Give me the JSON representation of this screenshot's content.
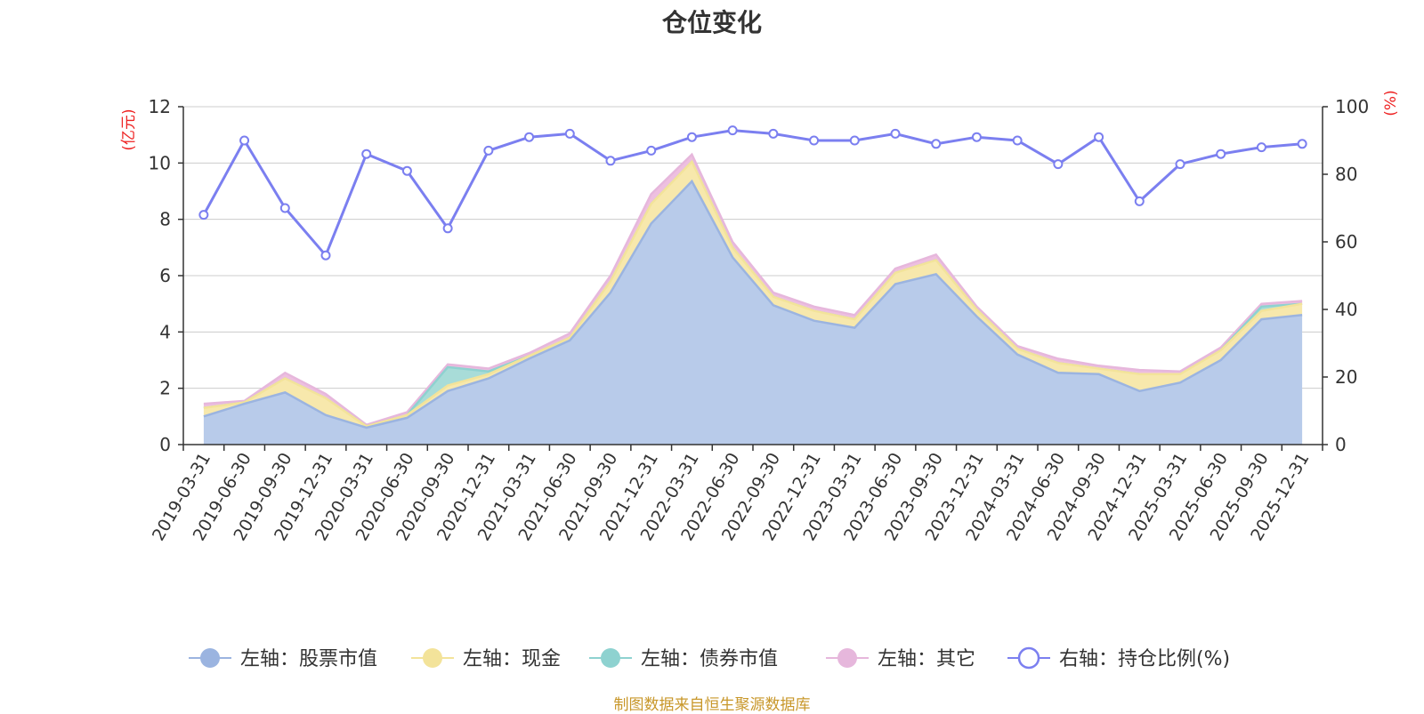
{
  "chart_data": {
    "type": "area",
    "title": "仓位变化",
    "source": "制图数据来自恒生聚源数据库",
    "left_axis_unit": "(亿元)",
    "right_axis_unit": "(%)",
    "left_ylim": [
      0,
      12
    ],
    "left_ticks": [
      "0",
      "2",
      "4",
      "6",
      "8",
      "10",
      "12"
    ],
    "right_ylim": [
      0,
      100
    ],
    "right_ticks": [
      "0",
      "20",
      "40",
      "60",
      "80",
      "100"
    ],
    "categories": [
      "2019-03-31",
      "2019-06-30",
      "2019-09-30",
      "2019-12-31",
      "2020-03-31",
      "2020-06-30",
      "2020-09-30",
      "2020-12-31",
      "2021-03-31",
      "2021-06-30",
      "2021-09-30",
      "2021-12-31",
      "2022-03-31",
      "2022-06-30",
      "2022-09-30",
      "2022-12-31",
      "2023-03-31",
      "2023-06-30",
      "2023-09-30",
      "2023-12-31",
      "2024-03-31",
      "2024-06-30",
      "2024-09-30",
      "2024-12-31",
      "2025-03-31",
      "2025-06-30",
      "2025-09-30",
      "2025-12-31"
    ],
    "stacked_series": [
      {
        "name": "左轴：股票市值",
        "color": "#9bb4e0",
        "fill": "#b8cbea",
        "values": [
          1.0,
          1.45,
          1.85,
          1.05,
          0.6,
          0.95,
          1.9,
          2.35,
          3.05,
          3.7,
          5.4,
          7.85,
          9.35,
          6.65,
          4.95,
          4.4,
          4.15,
          5.7,
          6.05,
          4.55,
          3.2,
          2.55,
          2.5,
          1.9,
          2.2,
          3.0,
          4.45,
          4.6
        ]
      },
      {
        "name": "左轴：现金",
        "color": "#f3e39a",
        "fill": "#f7e8ac",
        "values": [
          0.3,
          0.05,
          0.5,
          0.6,
          0.05,
          0.1,
          0.2,
          0.15,
          0.1,
          0.1,
          0.4,
          0.7,
          0.7,
          0.35,
          0.3,
          0.35,
          0.3,
          0.4,
          0.5,
          0.25,
          0.2,
          0.35,
          0.2,
          0.6,
          0.3,
          0.35,
          0.3,
          0.4
        ]
      },
      {
        "name": "左轴：债券市值",
        "color": "#8ed2d0",
        "fill": "#a8dcd8",
        "values": [
          0.0,
          0.0,
          0.0,
          0.0,
          0.0,
          0.0,
          0.65,
          0.1,
          0.0,
          0.0,
          0.0,
          0.0,
          0.0,
          0.0,
          0.0,
          0.0,
          0.0,
          0.0,
          0.0,
          0.0,
          0.0,
          0.0,
          0.0,
          0.0,
          0.0,
          0.0,
          0.15,
          0.0
        ]
      },
      {
        "name": "左轴：其它",
        "color": "#e6b7dc",
        "fill": "#eebfe0",
        "values": [
          0.15,
          0.05,
          0.2,
          0.15,
          0.05,
          0.1,
          0.1,
          0.1,
          0.1,
          0.15,
          0.2,
          0.35,
          0.25,
          0.2,
          0.15,
          0.15,
          0.15,
          0.15,
          0.2,
          0.1,
          0.1,
          0.15,
          0.1,
          0.15,
          0.1,
          0.1,
          0.1,
          0.1
        ]
      }
    ],
    "line_series": {
      "name": "右轴：持仓比例(%)",
      "color": "#7b7ff0",
      "values": [
        68,
        90,
        70,
        56,
        86,
        81,
        64,
        87,
        91,
        92,
        84,
        87,
        91,
        93,
        92,
        90,
        90,
        92,
        89,
        91,
        90,
        83,
        91,
        72,
        83,
        86,
        88,
        89
      ]
    },
    "legend_position": "bottom"
  }
}
